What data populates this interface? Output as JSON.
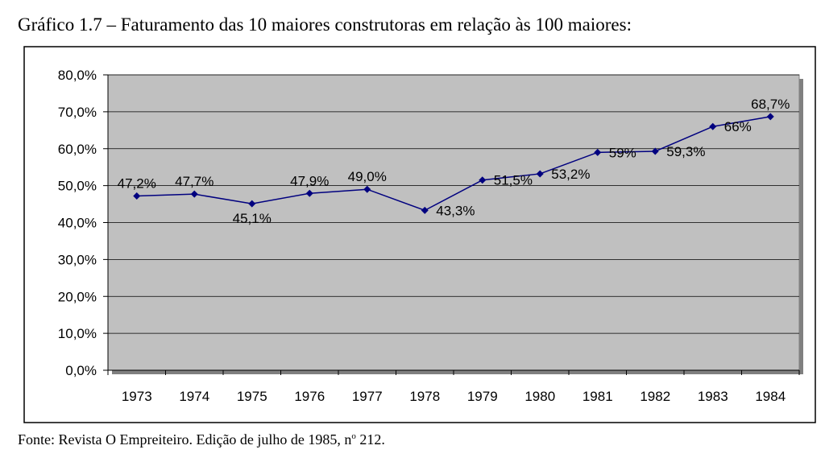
{
  "title": "Gráfico 1.7 – Faturamento das 10 maiores construtoras em relação às 100 maiores:",
  "source": {
    "text": "Fonte: Revista O Empreiteiro. Edição de julho de 1985, n",
    "superscript": "o",
    "suffix": " 212."
  },
  "chart_data": {
    "type": "line",
    "categories": [
      "1973",
      "1974",
      "1975",
      "1976",
      "1977",
      "1978",
      "1979",
      "1980",
      "1981",
      "1982",
      "1983",
      "1984"
    ],
    "series": [
      {
        "values": [
          47.2,
          47.7,
          45.1,
          47.9,
          49.0,
          43.3,
          51.5,
          53.2,
          59.0,
          59.3,
          66.0,
          68.7
        ],
        "labels": [
          "47,2%",
          "47,7%",
          "45,1%",
          "47,9%",
          "49,0%",
          "43,3%",
          "51,5%",
          "53,2%",
          "59%",
          "59,3%",
          "66%",
          "68,7%"
        ],
        "color": "#00007f"
      }
    ],
    "ylim": [
      0,
      80
    ],
    "yticks": [
      0,
      10,
      20,
      30,
      40,
      50,
      60,
      70,
      80
    ],
    "ytick_labels": [
      "0,0%",
      "10,0%",
      "20,0%",
      "30,0%",
      "40,0%",
      "50,0%",
      "60,0%",
      "70,0%",
      "80,0%"
    ],
    "grid": true,
    "plot_background": "#c0c0c0",
    "legend": "none"
  }
}
